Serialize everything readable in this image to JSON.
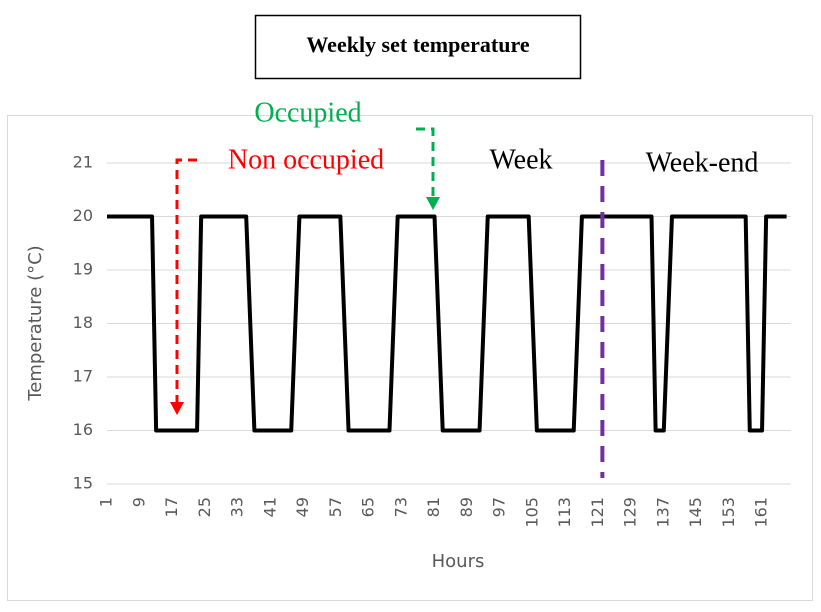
{
  "chart_data": {
    "type": "line",
    "title": "Weekly set temperature",
    "x_label": "Hours",
    "y_label": "Temperature (°C)",
    "x": [
      1,
      12,
      13,
      23,
      24,
      35,
      37,
      46,
      48,
      58,
      60,
      70,
      72,
      81,
      83,
      92,
      94,
      104,
      106,
      115,
      117,
      134,
      135,
      137,
      139,
      157,
      158,
      161,
      162,
      167
    ],
    "values": [
      20,
      20,
      16,
      16,
      20,
      20,
      16,
      16,
      20,
      20,
      16,
      16,
      20,
      20,
      16,
      16,
      20,
      20,
      16,
      16,
      20,
      20,
      16,
      16,
      20,
      20,
      16,
      16,
      20,
      20
    ],
    "color": "#000000",
    "xlim": [
      1,
      168
    ],
    "xticks": [
      1,
      9,
      17,
      25,
      33,
      41,
      49,
      57,
      65,
      73,
      81,
      89,
      97,
      105,
      113,
      121,
      129,
      137,
      145,
      153,
      161
    ],
    "ylim": [
      15,
      21
    ],
    "yticks": [
      15,
      16,
      17,
      18,
      19,
      20,
      21
    ],
    "grid": true,
    "week_end_line": 122,
    "week_end_line_color": "#7030a0",
    "annotations": [
      "Occupied",
      "Non occupied",
      "Week",
      "Week-end"
    ],
    "annotation_colors": [
      "#00b050",
      "#ff0000",
      "#000000",
      "#000000"
    ]
  }
}
